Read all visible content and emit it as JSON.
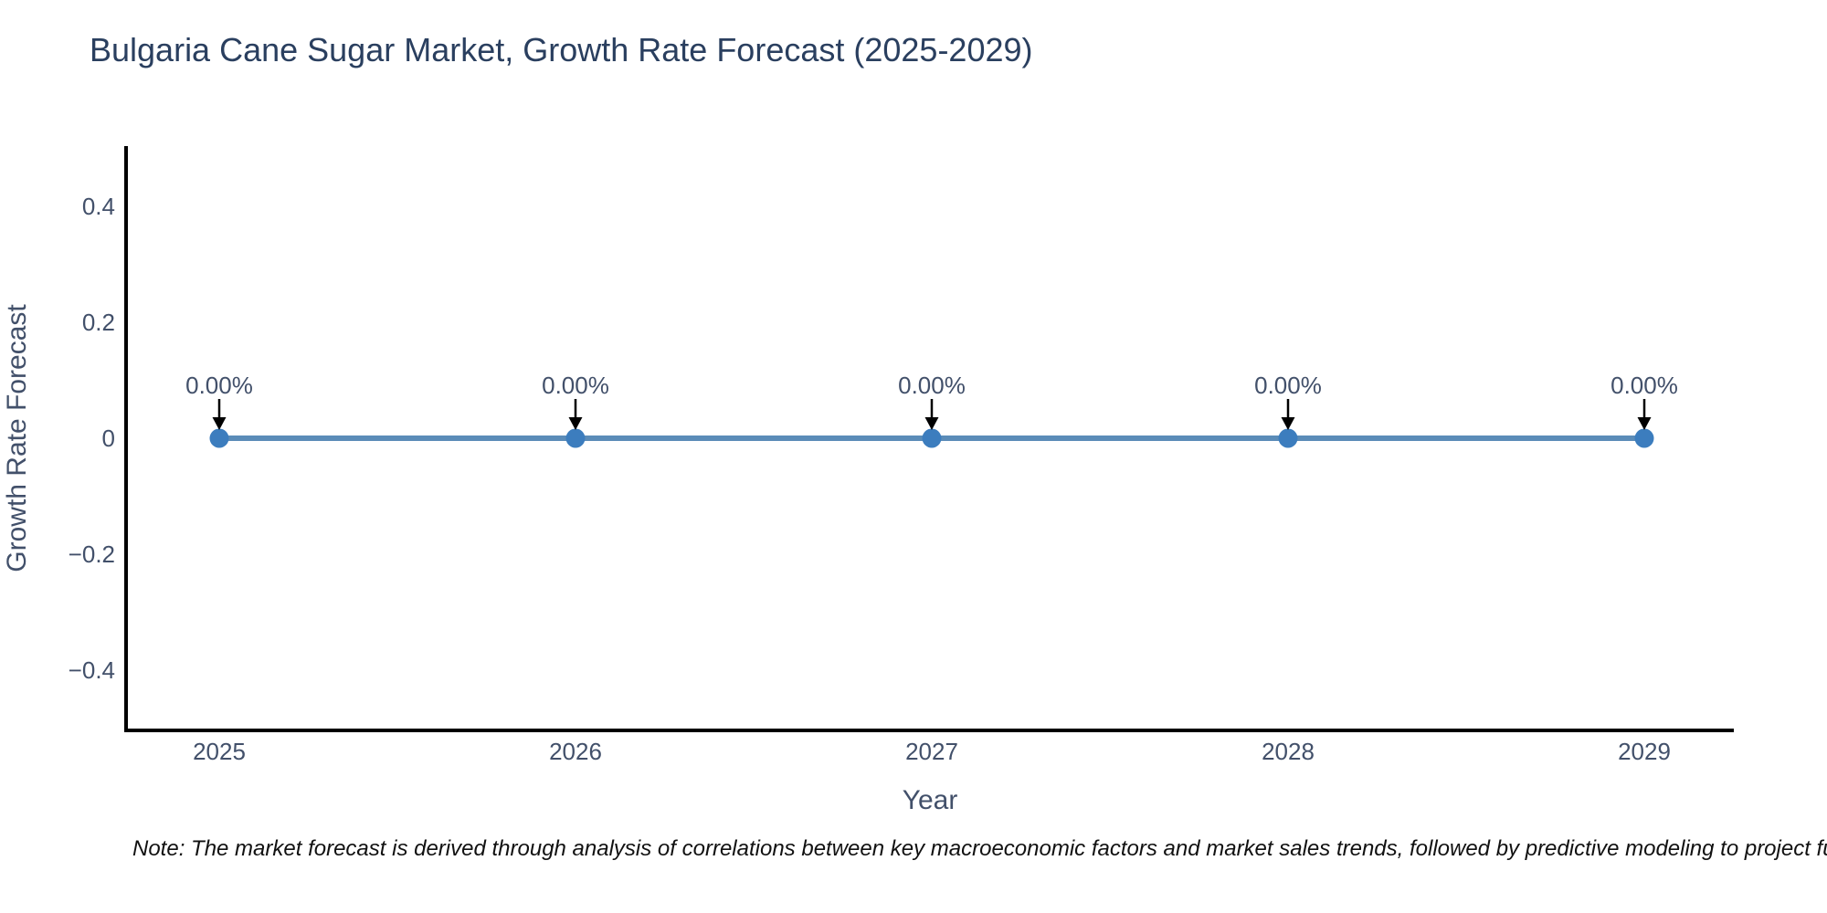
{
  "chart_data": {
    "type": "line",
    "title": "Bulgaria Cane Sugar Market, Growth Rate Forecast (2025-2029)",
    "xlabel": "Year",
    "ylabel": "Growth Rate Forecast",
    "x": [
      2025,
      2026,
      2027,
      2028,
      2029
    ],
    "series": [
      {
        "name": "Growth Rate Forecast",
        "values": [
          0,
          0,
          0,
          0,
          0
        ]
      }
    ],
    "point_labels": [
      "0.00%",
      "0.00%",
      "0.00%",
      "0.00%",
      "0.00%"
    ],
    "yticks": [
      0.4,
      0.2,
      0,
      -0.2,
      -0.4
    ],
    "ytick_labels": [
      "0.4",
      "0.2",
      "0",
      "−0.2",
      "−0.4"
    ],
    "ylim": [
      -0.504,
      0.504
    ],
    "grid": false,
    "legend": "none",
    "annotation_arrows": true,
    "colors": {
      "line": "#5b8cb8",
      "marker": "#3c7dbe",
      "arrow": "#000000",
      "axis": "#000000",
      "title_text": "#2a3f5f",
      "axis_text": "#42506a",
      "note_text": "#111111",
      "background": "#ffffff"
    }
  },
  "note": "Note: The market forecast is derived through analysis of correlations between key macroeconomic factors and market sales trends, followed by predictive modeling to project future sa"
}
